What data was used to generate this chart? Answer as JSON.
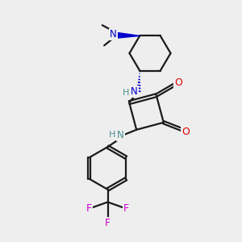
{
  "bg_color": "#eeeeee",
  "bond_color": "#1a1a1a",
  "N_color": "#0000cc",
  "N2_color": "#4a9090",
  "O_color": "#dd0000",
  "F_color": "#cc00cc",
  "line_width": 1.6,
  "fig_size": [
    3.0,
    3.0
  ],
  "dpi": 100,
  "xlim": [
    0,
    10
  ],
  "ylim": [
    0,
    10
  ]
}
